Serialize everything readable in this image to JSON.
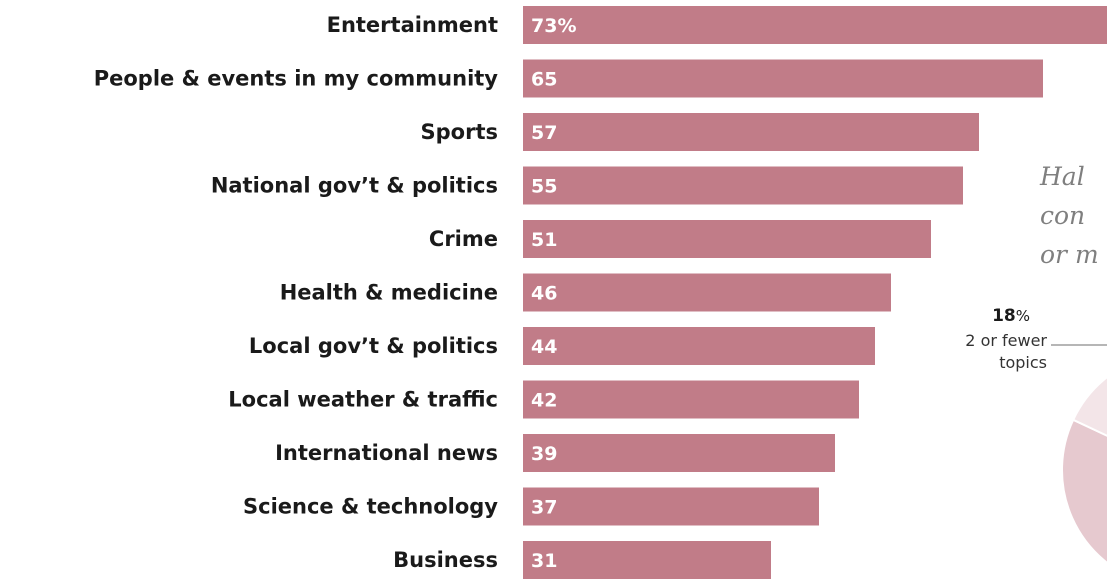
{
  "chart_data": [
    {
      "type": "bar",
      "orientation": "horizontal",
      "categories": [
        "Entertainment",
        "People & events in my community",
        "Sports",
        "National gov’t & politics",
        "Crime",
        "Health & medicine",
        "Local gov’t & politics",
        "Local weather & traffic",
        "International news",
        "Science & technology",
        "Business"
      ],
      "values": [
        73,
        65,
        57,
        55,
        51,
        46,
        44,
        42,
        39,
        37,
        31
      ],
      "value_labels": [
        "73%",
        "65",
        "57",
        "55",
        "51",
        "46",
        "44",
        "42",
        "39",
        "37",
        "31"
      ],
      "unit": "%",
      "xlim": [
        0,
        73
      ],
      "grid": false,
      "colors": {
        "bar": "#c17c88",
        "bar_label": "#ffffff",
        "category_label": "#1a1a1a"
      }
    },
    {
      "type": "pie",
      "slices": [
        {
          "label": "2 or fewer topics",
          "value": 18,
          "value_label": "18%",
          "pct_number": "18",
          "pct_sign": "%",
          "label_lines": [
            "2 or fewer",
            "topics"
          ]
        }
      ],
      "colors": {
        "main": "#e6c9cf",
        "highlight": "#f3e5e8",
        "leader": "#8a8a8a"
      }
    }
  ],
  "annotation": {
    "lines": [
      "Hal",
      "con",
      "or m"
    ],
    "color": "#7f7f7f"
  }
}
